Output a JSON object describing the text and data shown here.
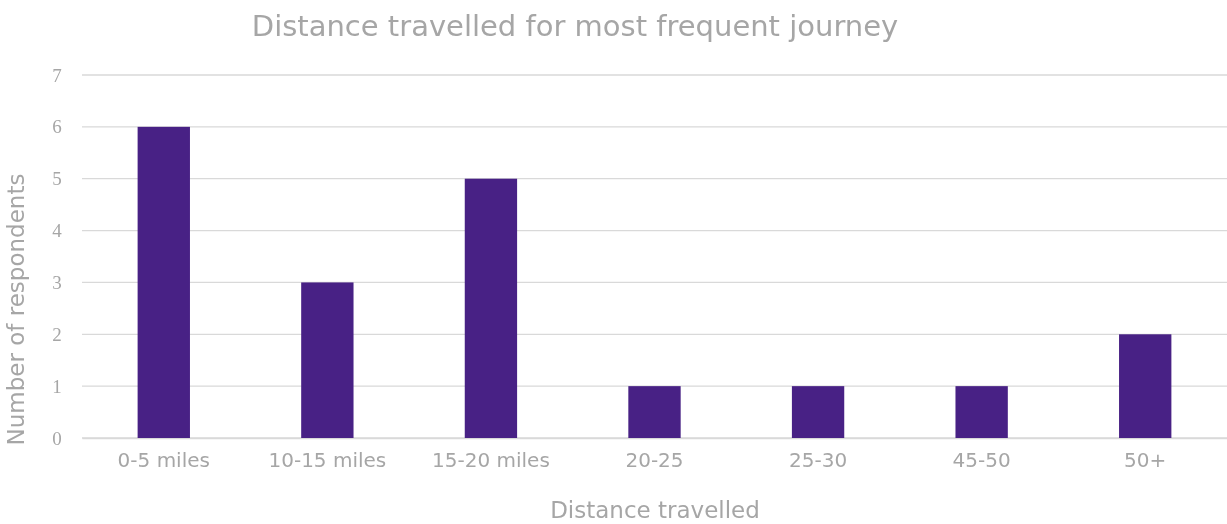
{
  "chart_data": {
    "type": "bar",
    "title": "Distance travelled for most frequent journey",
    "xlabel": "Distance travelled",
    "ylabel": "Number of respondents",
    "categories": [
      "0-5 miles",
      "10-15 miles",
      "15-20 miles",
      "20-25",
      "25-30",
      "45-50",
      "50+"
    ],
    "values": [
      6,
      3,
      5,
      1,
      1,
      1,
      2
    ],
    "color": "#482185",
    "ylim": [
      0,
      7
    ],
    "yticks": [
      0,
      1,
      2,
      3,
      4,
      5,
      6,
      7
    ],
    "grid": "y"
  }
}
